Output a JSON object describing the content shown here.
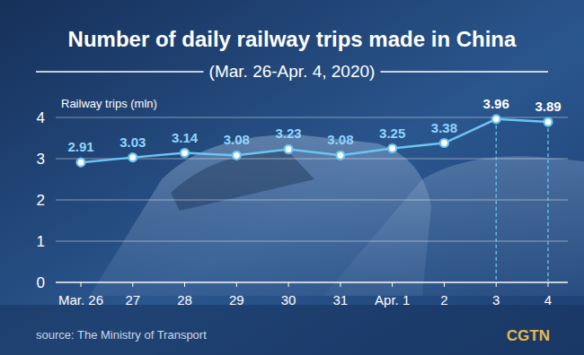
{
  "chart_data": {
    "type": "line",
    "title": "Number of daily railway trips made in China",
    "subtitle": "(Mar. 26-Apr. 4, 2020)",
    "y_label": "Railway trips (mln)",
    "categories": [
      "Mar. 26",
      "27",
      "28",
      "29",
      "30",
      "31",
      "Apr. 1",
      "2",
      "3",
      "4"
    ],
    "values": [
      2.91,
      3.03,
      3.14,
      3.08,
      3.23,
      3.08,
      3.25,
      3.38,
      3.96,
      3.89
    ],
    "color": "#6cc4f2",
    "ylim": [
      0,
      4
    ],
    "yticks": [
      0,
      1,
      2,
      3,
      4
    ],
    "grid": true,
    "data_labels": true,
    "marker": "circle"
  },
  "source": "source: The Ministry of Transport",
  "brand": "CGTN"
}
